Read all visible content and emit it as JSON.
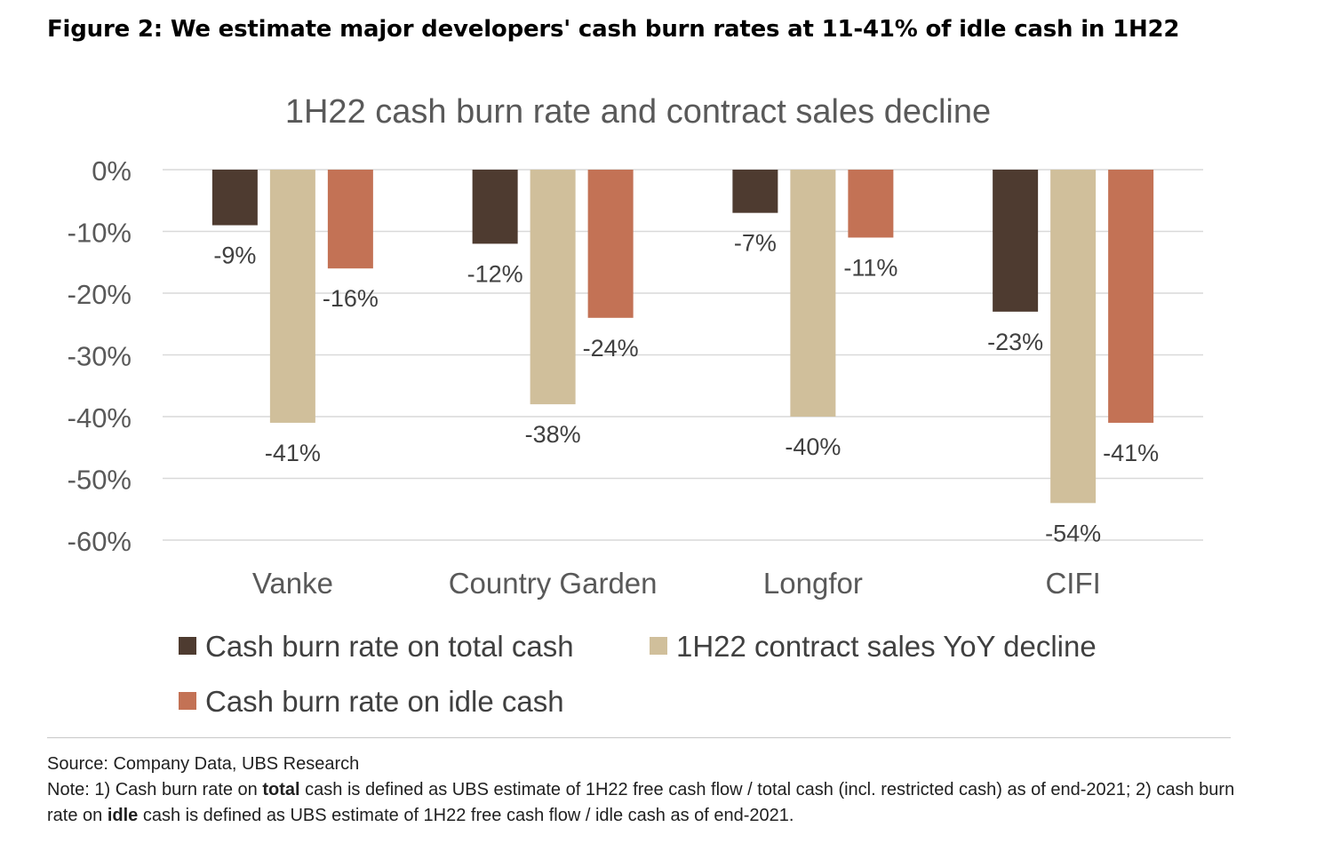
{
  "figure_title": "Figure 2: We estimate major developers' cash burn rates at 11-41% of idle cash in 1H22",
  "chart_data": {
    "type": "bar",
    "title": "1H22 cash burn rate and contract sales decline",
    "categories": [
      "Vanke",
      "Country Garden",
      "Longfor",
      "CIFI"
    ],
    "series": [
      {
        "name": "Cash burn rate on total cash",
        "color": "#4e3b30",
        "values": [
          -9,
          -12,
          -7,
          -23
        ],
        "labels": [
          "-9%",
          "-12%",
          "-7%",
          "-23%"
        ]
      },
      {
        "name": "1H22 contract sales YoY decline",
        "color": "#d0bf9b",
        "values": [
          -41,
          -38,
          -40,
          -54
        ],
        "labels": [
          "-41%",
          "-38%",
          "-40%",
          "-54%"
        ]
      },
      {
        "name": "Cash burn rate on idle cash",
        "color": "#c37255",
        "values": [
          -16,
          -24,
          -11,
          -41
        ],
        "labels": [
          "-16%",
          "-24%",
          "-11%",
          "-41%"
        ]
      }
    ],
    "ylim": [
      -60,
      0
    ],
    "yticks": [
      0,
      -10,
      -20,
      -30,
      -40,
      -50,
      -60
    ],
    "ytick_labels": [
      "0%",
      "-10%",
      "-20%",
      "-30%",
      "-40%",
      "-50%",
      "-60%"
    ],
    "grid": true,
    "legend": "bottom",
    "xlabel": "",
    "ylabel": ""
  },
  "footer": {
    "source": "Source: Company Data, UBS Research",
    "note_parts": [
      "Note: 1) Cash burn rate on ",
      "total",
      " cash is defined as UBS estimate of 1H22 free cash flow / total cash (incl. restricted cash) as of end-2021; 2) cash burn rate on ",
      "idle",
      " cash is defined as UBS estimate of 1H22 free cash flow / idle cash as of end-2021."
    ]
  }
}
